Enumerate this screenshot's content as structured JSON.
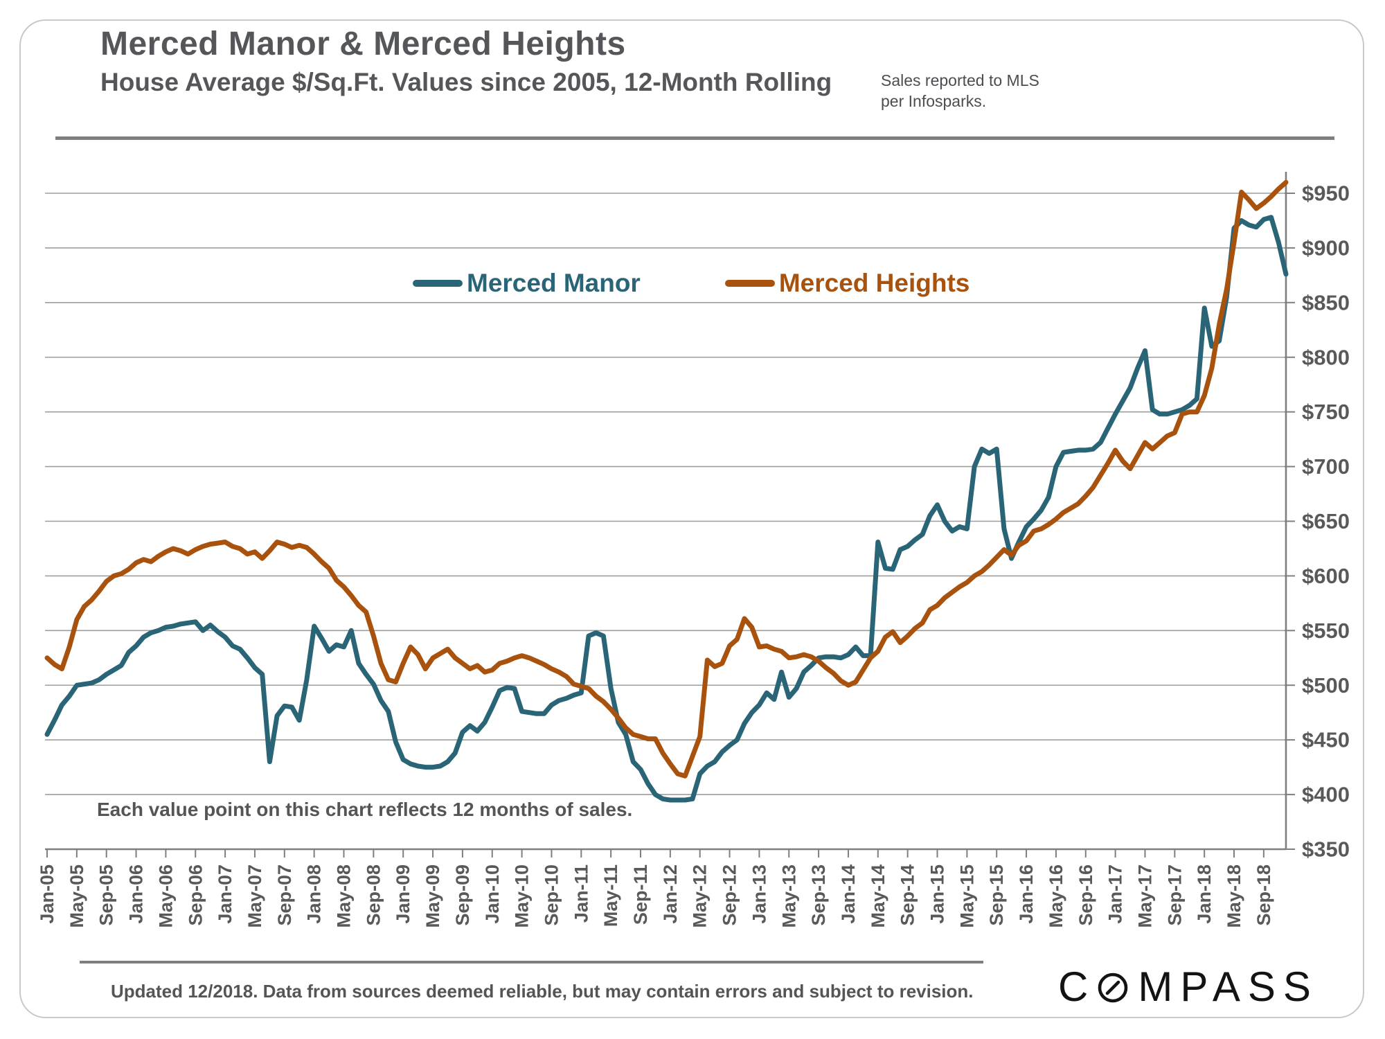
{
  "header": {
    "title": "Merced Manor & Merced Heights",
    "subtitle": "House Average $/Sq.Ft. Values since 2005, 12-Month Rolling",
    "note": "Sales reported to MLS per Infosparks."
  },
  "annotation": "Each value point on this chart reflects 12 months of sales.",
  "footer": {
    "disclaimer": "Updated 12/2018. Data from sources deemed reliable, but may contain errors and subject to revision.",
    "brand_c": "C",
    "brand_rest": "MPASS"
  },
  "colors": {
    "manor": "#2A6477",
    "heights": "#A8520D",
    "axis_text": "#58595b",
    "rule_gray": "#7f7f7f"
  },
  "chart_data": {
    "type": "line",
    "title": "Merced Manor & Merced Heights",
    "subtitle": "House Average $/Sq.Ft. Values since 2005, 12-Month Rolling",
    "xlabel": "",
    "ylabel": "House Average $/Sq.Ft.",
    "x_start": "Jan-05",
    "x_end": "Dec-18",
    "x_interval_months": 1,
    "x_tick_labels": [
      "Jan-05",
      "May-05",
      "Sep-05",
      "Jan-06",
      "May-06",
      "Sep-06",
      "Jan-07",
      "May-07",
      "Sep-07",
      "Jan-08",
      "May-08",
      "Sep-08",
      "Jan-09",
      "May-09",
      "Sep-09",
      "Jan-10",
      "May-10",
      "Sep-10",
      "Jan-11",
      "May-11",
      "Sep-11",
      "Jan-12",
      "May-12",
      "Sep-12",
      "Jan-13",
      "May-13",
      "Sep-13",
      "Jan-14",
      "May-14",
      "Sep-14",
      "Jan-15",
      "May-15",
      "Sep-15",
      "Jan-16",
      "May-16",
      "Sep-16",
      "Jan-17",
      "May-17",
      "Sep-17",
      "Jan-18",
      "May-18",
      "Sep-18"
    ],
    "y_ticks": [
      950,
      900,
      850,
      800,
      750,
      700,
      650,
      600,
      550,
      500,
      450,
      400,
      350
    ],
    "y_tick_prefix": "$",
    "ylim": [
      350,
      975
    ],
    "grid": "horizontal",
    "legend_position": "top-center",
    "series": [
      {
        "name": "Merced Manor",
        "color": "#2A6477",
        "values": [
          455,
          468,
          482,
          490,
          500,
          501,
          502,
          505,
          510,
          514,
          518,
          530,
          536,
          544,
          548,
          550,
          553,
          554,
          556,
          557,
          558,
          550,
          555,
          549,
          544,
          536,
          533,
          525,
          516,
          510,
          430,
          472,
          481,
          480,
          468,
          505,
          554,
          543,
          531,
          537,
          535,
          550,
          520,
          510,
          501,
          486,
          476,
          448,
          432,
          428,
          426,
          425,
          425,
          426,
          430,
          438,
          457,
          463,
          458,
          466,
          480,
          495,
          498,
          497,
          476,
          475,
          474,
          474,
          482,
          486,
          488,
          491,
          493,
          545,
          548,
          545,
          497,
          466,
          455,
          430,
          423,
          410,
          400,
          396,
          395,
          395,
          395,
          396,
          419,
          426,
          430,
          439,
          445,
          450,
          465,
          475,
          482,
          493,
          487,
          512,
          489,
          497,
          512,
          518,
          525,
          526,
          526,
          525,
          528,
          535,
          527,
          527,
          631,
          607,
          606,
          624,
          627,
          633,
          638,
          655,
          665,
          650,
          641,
          645,
          643,
          700,
          716,
          712,
          716,
          643,
          616,
          631,
          645,
          652,
          660,
          672,
          700,
          713,
          714,
          715,
          715,
          716,
          722,
          735,
          748,
          760,
          772,
          790,
          806,
          752,
          748,
          748,
          750,
          752,
          756,
          762,
          845,
          810,
          815,
          855,
          918,
          925,
          921,
          919,
          926,
          928,
          905,
          876
        ]
      },
      {
        "name": "Merced Heights",
        "color": "#A8520D",
        "values": [
          525,
          519,
          515,
          535,
          560,
          572,
          578,
          586,
          595,
          600,
          602,
          606,
          612,
          615,
          613,
          618,
          622,
          625,
          623,
          620,
          624,
          627,
          629,
          630,
          631,
          627,
          625,
          620,
          622,
          616,
          623,
          631,
          629,
          626,
          628,
          626,
          620,
          613,
          607,
          596,
          590,
          582,
          573,
          567,
          545,
          520,
          505,
          503,
          520,
          535,
          528,
          515,
          525,
          529,
          533,
          525,
          520,
          515,
          518,
          512,
          514,
          520,
          522,
          525,
          527,
          525,
          522,
          519,
          515,
          512,
          508,
          501,
          499,
          497,
          490,
          485,
          478,
          470,
          461,
          455,
          453,
          451,
          451,
          438,
          428,
          419,
          417,
          435,
          453,
          523,
          517,
          520,
          536,
          542,
          561,
          553,
          535,
          536,
          533,
          531,
          525,
          526,
          528,
          526,
          522,
          516,
          511,
          504,
          500,
          503,
          514,
          525,
          531,
          544,
          549,
          539,
          545,
          552,
          557,
          569,
          573,
          580,
          585,
          590,
          594,
          600,
          604,
          610,
          617,
          624,
          619,
          628,
          632,
          641,
          643,
          647,
          652,
          658,
          662,
          666,
          673,
          681,
          692,
          703,
          715,
          705,
          698,
          710,
          722,
          716,
          722,
          728,
          731,
          748,
          750,
          750,
          765,
          790,
          830,
          862,
          905,
          951,
          944,
          936,
          941,
          947,
          954,
          960
        ]
      }
    ]
  }
}
